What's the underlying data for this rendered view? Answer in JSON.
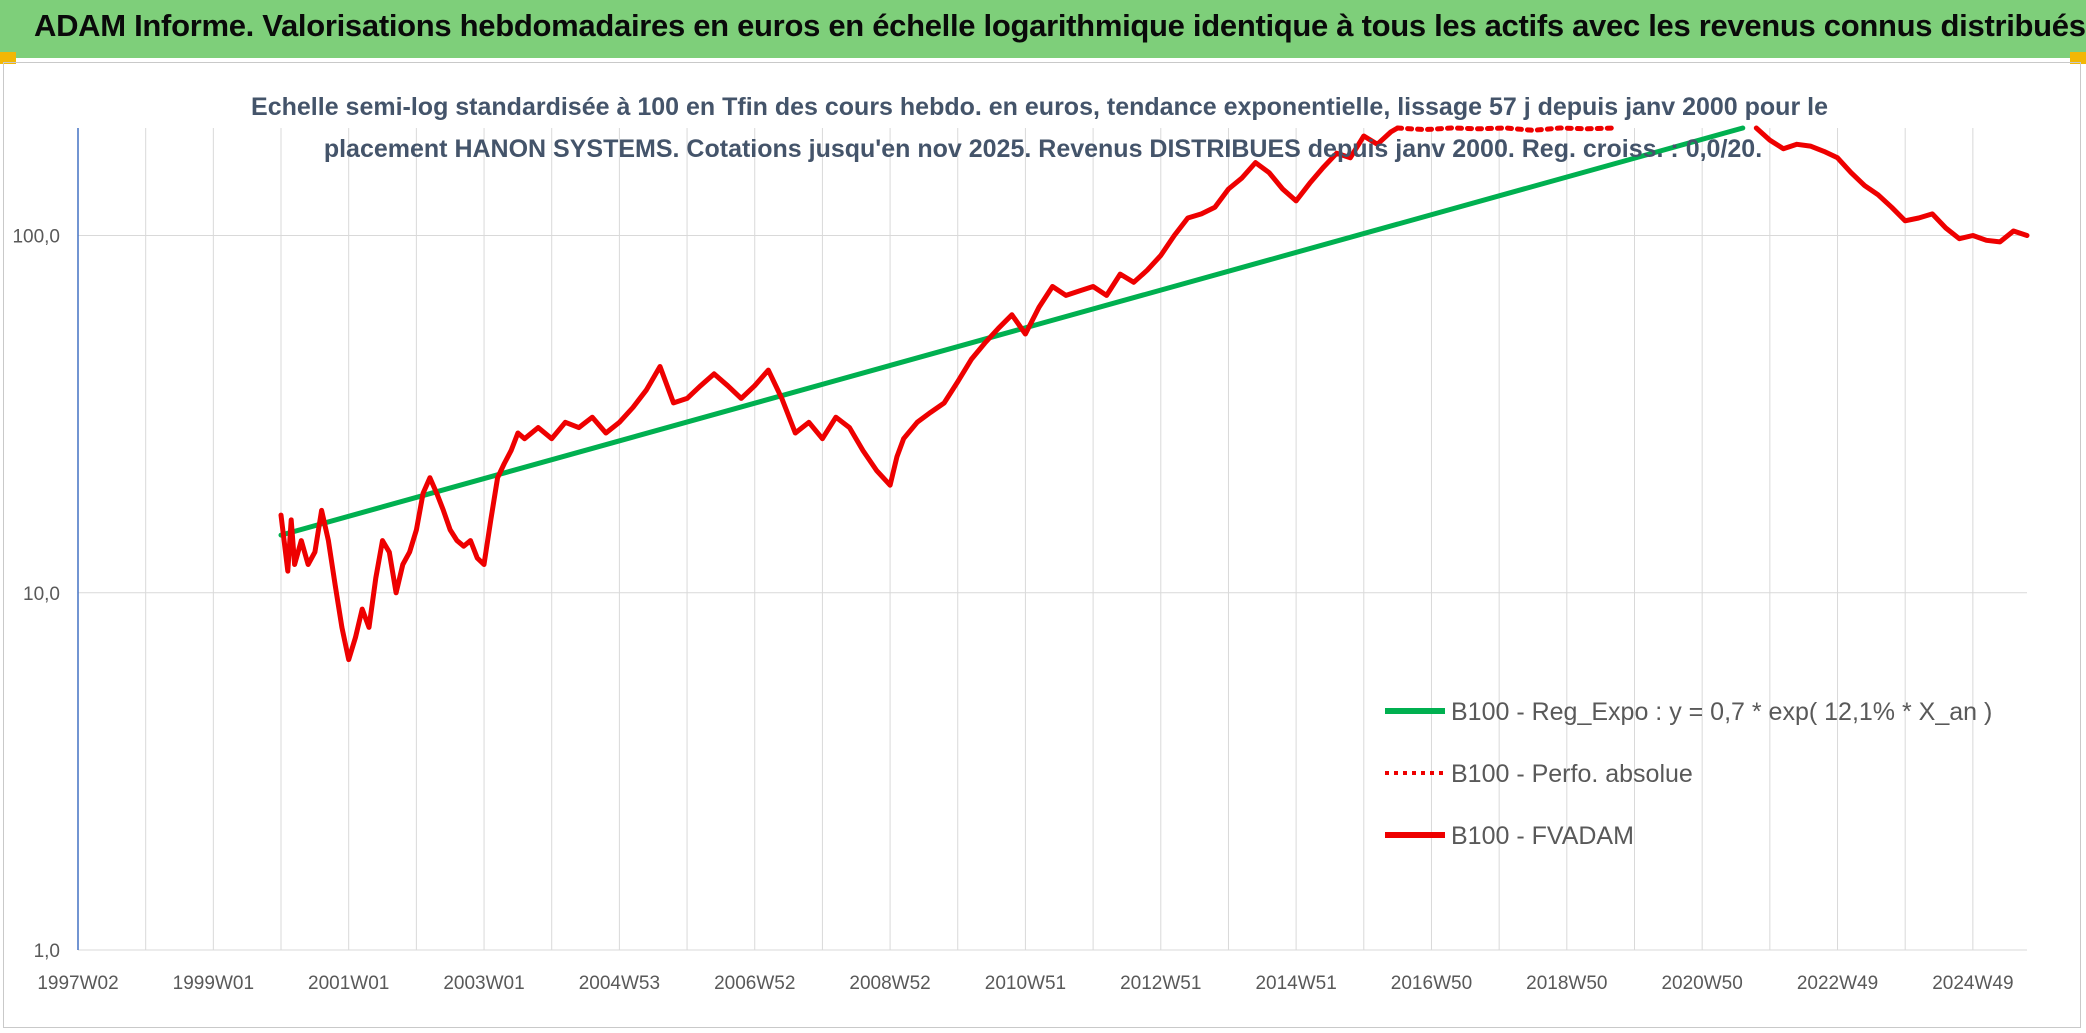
{
  "header": {
    "title": "ADAM Informe. Valorisations hebdomadaires en euros en échelle logarithmique identique à tous les actifs avec les revenus connus distribués"
  },
  "colors": {
    "header_bg": "#7ecf7a",
    "trend": "#00b050",
    "fvadam": "#ee0000",
    "perfo": "#ee0000",
    "grid": "#d9d9d9",
    "axis": "#4472c4"
  },
  "chart_data": {
    "type": "line",
    "title": "",
    "subtitle_lines": [
      "Echelle semi-log standardisée à 100 en Tfin des cours hebdo. en euros, tendance exponentielle, lissage 57 j depuis janv 2000 pour le",
      "placement HANON SYSTEMS. Cotations jusqu'en nov 2025. Revenus DISTRIBUES depuis janv 2000. Reg. croiss. : 0,0/20."
    ],
    "y_scale": "log",
    "ylim": [
      1,
      200
    ],
    "y_ticks": [
      {
        "value": 1,
        "label": "1,0"
      },
      {
        "value": 10,
        "label": "10,0"
      },
      {
        "value": 100,
        "label": "100,0"
      }
    ],
    "xlim": [
      1997.0,
      2025.8
    ],
    "x_ticks": [
      {
        "value": 1997.0,
        "label": "1997W02"
      },
      {
        "value": 1999.0,
        "label": "1999W01"
      },
      {
        "value": 2001.0,
        "label": "2001W01"
      },
      {
        "value": 2003.0,
        "label": "2003W01"
      },
      {
        "value": 2005.0,
        "label": "2004W53"
      },
      {
        "value": 2007.0,
        "label": "2006W52"
      },
      {
        "value": 2009.0,
        "label": "2008W52"
      },
      {
        "value": 2011.0,
        "label": "2010W51"
      },
      {
        "value": 2013.0,
        "label": "2012W51"
      },
      {
        "value": 2015.0,
        "label": "2014W51"
      },
      {
        "value": 2017.0,
        "label": "2016W50"
      },
      {
        "value": 2019.0,
        "label": "2018W50"
      },
      {
        "value": 2021.0,
        "label": "2020W50"
      },
      {
        "value": 2023.0,
        "label": "2022W49"
      },
      {
        "value": 2025.0,
        "label": "2024W49"
      }
    ],
    "grid": true,
    "legend_position": "bottom-right",
    "series": [
      {
        "name": "B100 - Reg_Expo : y = 0,7 * exp( 12,1% *  X_an )",
        "style": "solid",
        "color": "#00b050",
        "x": [
          2000.0,
          2021.6
        ],
        "y": [
          14.5,
          200
        ]
      },
      {
        "name": "B100 - Perfo. absolue",
        "style": "dotted",
        "color": "#ee0000",
        "x": [
          2016.5,
          2016.9,
          2017.3,
          2017.7,
          2018.1,
          2018.5,
          2018.9,
          2019.3,
          2019.7
        ],
        "y": [
          200,
          198,
          200,
          199,
          200,
          197,
          200,
          199,
          200
        ]
      },
      {
        "name": "B100 - FVADAM",
        "style": "solid",
        "color": "#ee0000",
        "x": [
          2000.0,
          2000.1,
          2000.15,
          2000.2,
          2000.3,
          2000.4,
          2000.5,
          2000.6,
          2000.7,
          2000.8,
          2000.9,
          2001.0,
          2001.1,
          2001.2,
          2001.3,
          2001.4,
          2001.5,
          2001.6,
          2001.7,
          2001.8,
          2001.9,
          2002.0,
          2002.1,
          2002.2,
          2002.3,
          2002.4,
          2002.5,
          2002.6,
          2002.7,
          2002.8,
          2002.9,
          2003.0,
          2003.1,
          2003.2,
          2003.3,
          2003.4,
          2003.5,
          2003.6,
          2003.8,
          2004.0,
          2004.2,
          2004.4,
          2004.6,
          2004.8,
          2005.0,
          2005.2,
          2005.4,
          2005.6,
          2005.8,
          2006.0,
          2006.2,
          2006.4,
          2006.6,
          2006.8,
          2007.0,
          2007.2,
          2007.4,
          2007.6,
          2007.8,
          2008.0,
          2008.2,
          2008.4,
          2008.6,
          2008.8,
          2009.0,
          2009.1,
          2009.2,
          2009.4,
          2009.6,
          2009.8,
          2010.0,
          2010.2,
          2010.4,
          2010.6,
          2010.8,
          2011.0,
          2011.2,
          2011.4,
          2011.6,
          2011.8,
          2012.0,
          2012.2,
          2012.4,
          2012.6,
          2012.8,
          2013.0,
          2013.2,
          2013.4,
          2013.6,
          2013.8,
          2014.0,
          2014.2,
          2014.4,
          2014.6,
          2014.8,
          2015.0,
          2015.2,
          2015.4,
          2015.6,
          2015.8,
          2016.0,
          2016.2,
          2016.4,
          2016.5
        ],
        "y": [
          16.5,
          11.5,
          16.0,
          12.0,
          14.0,
          12.0,
          13.0,
          17.0,
          14.0,
          10.5,
          8.0,
          6.5,
          7.5,
          9.0,
          8.0,
          11.0,
          14.0,
          13.0,
          10.0,
          12.0,
          13.0,
          15.0,
          19.0,
          21.0,
          19.0,
          17.0,
          15.0,
          14.0,
          13.5,
          14.0,
          12.5,
          12.0,
          16.0,
          21.0,
          23.0,
          25.0,
          28.0,
          27.0,
          29.0,
          27.0,
          30.0,
          29.0,
          31.0,
          28.0,
          30.0,
          33.0,
          37.0,
          43.0,
          34.0,
          35.0,
          38.0,
          41.0,
          38.0,
          35.0,
          38.0,
          42.0,
          35.0,
          28.0,
          30.0,
          27.0,
          31.0,
          29.0,
          25.0,
          22.0,
          20.0,
          24.0,
          27.0,
          30.0,
          32.0,
          34.0,
          39.0,
          45.0,
          50.0,
          55.0,
          60.0,
          53.0,
          63.0,
          72.0,
          68.0,
          70.0,
          72.0,
          68.0,
          78.0,
          74.0,
          80.0,
          88.0,
          100.0,
          112.0,
          115.0,
          120.0,
          135.0,
          145.0,
          160.0,
          150.0,
          135.0,
          125.0,
          140.0,
          155.0,
          170.0,
          165.0,
          190.0,
          180.0,
          195.0,
          200.0
        ]
      },
      {
        "name": "",
        "style": "solid",
        "color": "#ee0000",
        "legend": false,
        "x": [
          2021.8,
          2022.0,
          2022.2,
          2022.4,
          2022.6,
          2022.8,
          2023.0,
          2023.2,
          2023.4,
          2023.6,
          2023.8,
          2024.0,
          2024.2,
          2024.4,
          2024.6,
          2024.8,
          2025.0,
          2025.2,
          2025.4,
          2025.6,
          2025.8
        ],
        "y": [
          200,
          185,
          175,
          180,
          178,
          172,
          165,
          150,
          138,
          130,
          120,
          110,
          112,
          115,
          105,
          98,
          100,
          97,
          96,
          103,
          100
        ]
      }
    ]
  }
}
